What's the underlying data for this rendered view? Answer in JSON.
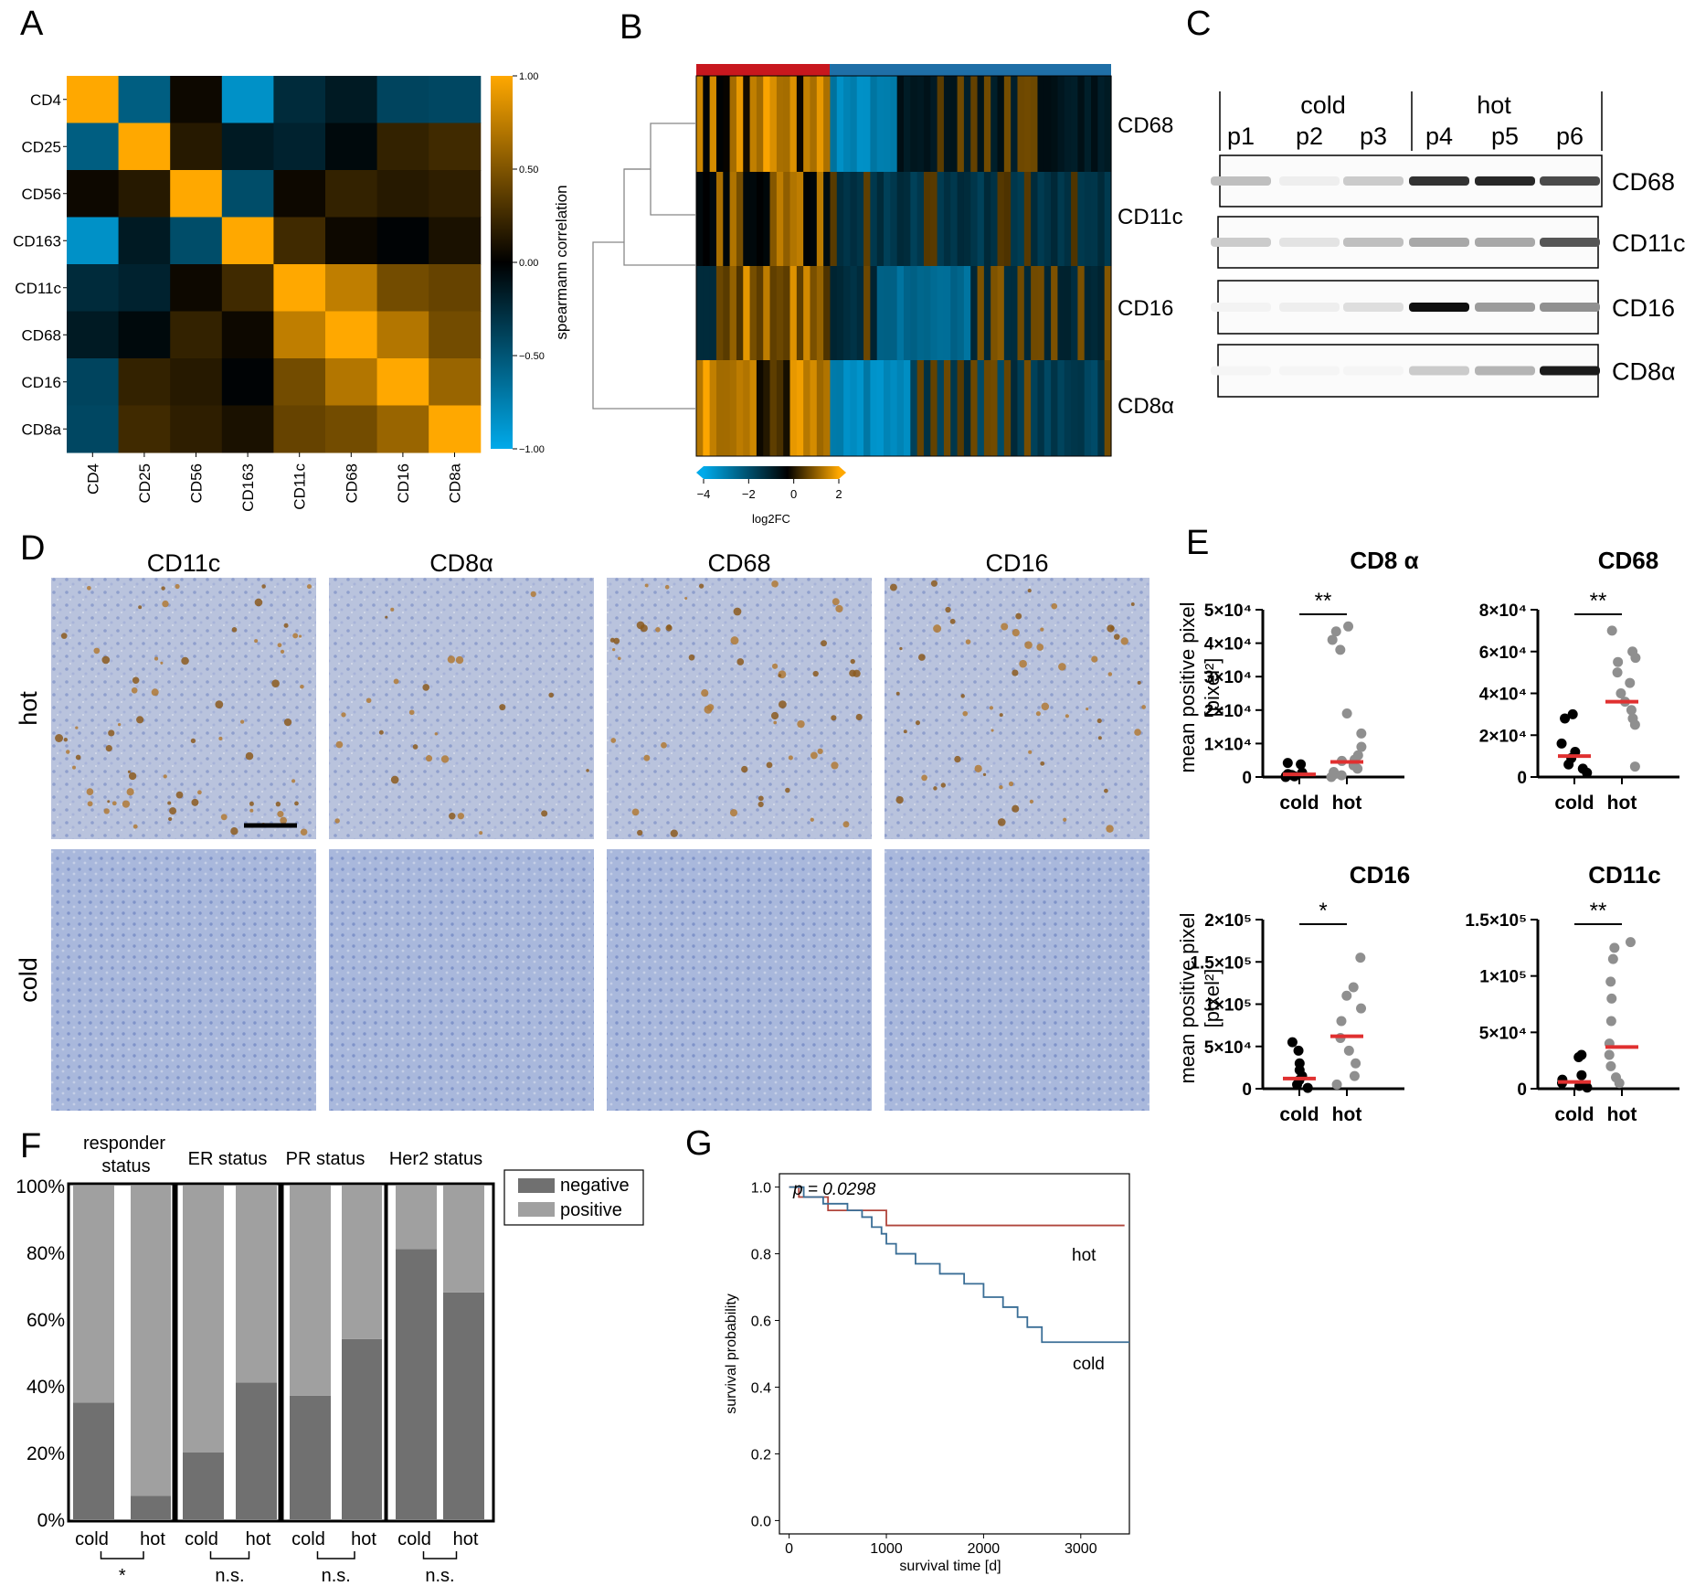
{
  "panel_letters": [
    "A",
    "B",
    "C",
    "D",
    "E",
    "F",
    "G"
  ],
  "colors": {
    "orange": "#ffa800",
    "blue": "#00aaea",
    "black": "#000000",
    "red": "#d02020",
    "hot_bar": "#c8171e",
    "cold_bar": "#1f6fa7",
    "dark_gray": "#707070",
    "light_gray": "#a0a0a0",
    "km_hot": "#b0453c",
    "km_cold": "#3a6e96",
    "median": "#e03030"
  },
  "panelA": {
    "title": "",
    "row_labels": [
      "CD4",
      "CD25",
      "CD56",
      "CD163",
      "CD11c",
      "CD68",
      "CD16",
      "CD8a"
    ],
    "col_labels": [
      "CD4",
      "CD25",
      "CD56",
      "CD163",
      "CD11c",
      "CD68",
      "CD16",
      "CD8a"
    ],
    "colorbar_ticks": [
      "1.00",
      "0.50",
      "0.00",
      "−0.50",
      "−1.00"
    ],
    "colorbar_label": "spearmann correlation",
    "chart_data": {
      "type": "heatmap",
      "x": [
        "CD4",
        "CD25",
        "CD56",
        "CD163",
        "CD11c",
        "CD68",
        "CD16",
        "CD8a"
      ],
      "y": [
        "CD4",
        "CD25",
        "CD56",
        "CD163",
        "CD11c",
        "CD68",
        "CD16",
        "CD8a"
      ],
      "zlim": [
        -1,
        1
      ],
      "values": [
        [
          1.0,
          -0.55,
          0.05,
          -0.85,
          -0.25,
          -0.15,
          -0.4,
          -0.42
        ],
        [
          -0.55,
          1.0,
          0.15,
          -0.15,
          -0.2,
          -0.05,
          0.2,
          0.25
        ],
        [
          0.05,
          0.15,
          1.0,
          -0.45,
          0.05,
          0.2,
          0.15,
          0.18
        ],
        [
          -0.85,
          -0.15,
          -0.45,
          1.0,
          0.25,
          0.05,
          -0.02,
          0.1
        ],
        [
          -0.25,
          -0.2,
          0.05,
          0.25,
          1.0,
          0.75,
          0.45,
          0.4
        ],
        [
          -0.15,
          -0.05,
          0.2,
          0.05,
          0.75,
          1.0,
          0.7,
          0.45
        ],
        [
          -0.4,
          0.2,
          0.15,
          -0.02,
          0.45,
          0.7,
          1.0,
          0.6
        ],
        [
          -0.42,
          0.25,
          0.18,
          0.1,
          0.4,
          0.45,
          0.6,
          1.0
        ]
      ]
    }
  },
  "panelB": {
    "row_labels": [
      "CD68",
      "CD11c",
      "CD16",
      "CD8α"
    ],
    "colorbar_ticks": [
      "−4",
      "−2",
      "0",
      "2"
    ],
    "colorbar_label": "log2FC",
    "chart_data": {
      "type": "heatmap",
      "rows": [
        "CD68",
        "CD11c",
        "CD16",
        "CD8α"
      ],
      "groups": [
        {
          "name": "hot",
          "n": 20
        },
        {
          "name": "cold",
          "n": 42
        }
      ],
      "zlim": [
        -4,
        2
      ]
    }
  },
  "panelC": {
    "group_labels": [
      "cold",
      "hot"
    ],
    "lane_labels": [
      "p1",
      "p2",
      "p3",
      "p4",
      "p5",
      "p6"
    ],
    "blot_labels": [
      "CD68",
      "CD11c",
      "CD16",
      "CD8α"
    ],
    "band_intensity": [
      [
        0.25,
        0.05,
        0.2,
        0.85,
        0.9,
        0.75
      ],
      [
        0.2,
        0.1,
        0.25,
        0.35,
        0.35,
        0.7
      ],
      [
        0.03,
        0.05,
        0.12,
        1.0,
        0.4,
        0.45
      ],
      [
        0.02,
        0.02,
        0.02,
        0.2,
        0.3,
        0.95
      ]
    ]
  },
  "panelD": {
    "col_labels": [
      "CD11c",
      "CD8α",
      "CD68",
      "CD16"
    ],
    "row_labels": [
      "hot",
      "cold"
    ]
  },
  "panelE": {
    "ylabel_line1": "mean positive pixel",
    "ylabel_line2": "[pixel²]",
    "chart_data": [
      {
        "type": "scatter",
        "title": "CD8 α",
        "categories": [
          "cold",
          "hot"
        ],
        "ylim": [
          0,
          50000
        ],
        "yticks": [
          "0",
          "1×10⁴",
          "2×10⁴",
          "3×10⁴",
          "4×10⁴",
          "5×10⁴"
        ],
        "ytick_values": [
          0,
          10000,
          20000,
          30000,
          40000,
          50000
        ],
        "significance": "**",
        "median": [
          800,
          4500
        ],
        "cold": [
          0,
          300,
          600,
          900,
          1300,
          3800,
          4200,
          200
        ],
        "hot": [
          0,
          800,
          1500,
          2500,
          3500,
          4800,
          5200,
          6500,
          9000,
          13000,
          19000,
          38000,
          41000,
          43500,
          45000,
          500
        ]
      },
      {
        "type": "scatter",
        "title": "CD68",
        "categories": [
          "cold",
          "hot"
        ],
        "ylim": [
          0,
          80000
        ],
        "yticks": [
          "0",
          "2×10⁴",
          "4×10⁴",
          "6×10⁴",
          "8×10⁴"
        ],
        "ytick_values": [
          0,
          20000,
          40000,
          60000,
          80000
        ],
        "significance": "**",
        "median": [
          10000,
          36000
        ],
        "cold": [
          2000,
          4000,
          6000,
          9000,
          12000,
          16000,
          28000,
          30000
        ],
        "hot": [
          5000,
          25000,
          28000,
          32000,
          36000,
          40000,
          45000,
          50000,
          55000,
          57000,
          60000,
          70000
        ]
      },
      {
        "type": "scatter",
        "title": "CD16",
        "categories": [
          "cold",
          "hot"
        ],
        "ylim": [
          0,
          200000
        ],
        "yticks": [
          "0",
          "5×10⁴",
          "1×10⁵",
          "1.5×10⁵",
          "2×10⁵"
        ],
        "ytick_values": [
          0,
          50000,
          100000,
          150000,
          200000
        ],
        "significance": "*",
        "median": [
          12000,
          62000
        ],
        "cold": [
          1000,
          5000,
          10000,
          15000,
          22000,
          30000,
          45000,
          55000
        ],
        "hot": [
          5000,
          15000,
          30000,
          45000,
          60000,
          80000,
          95000,
          110000,
          120000,
          155000
        ]
      },
      {
        "type": "scatter",
        "title": "CD11c",
        "categories": [
          "cold",
          "hot"
        ],
        "ylim": [
          0,
          150000
        ],
        "yticks": [
          "0",
          "5×10⁴",
          "1×10⁵",
          "1.5×10⁵"
        ],
        "ytick_values": [
          0,
          50000,
          100000,
          150000
        ],
        "significance": "**",
        "median": [
          6000,
          37000
        ],
        "cold": [
          1000,
          2500,
          5000,
          8000,
          12000,
          28000,
          30000
        ],
        "hot": [
          5000,
          10000,
          20000,
          30000,
          40000,
          60000,
          80000,
          95000,
          115000,
          125000,
          130000
        ]
      }
    ]
  },
  "panelF": {
    "group_titles": [
      "responder status",
      "ER status",
      "PR status",
      "Her2 status"
    ],
    "yticks": [
      "0%",
      "20%",
      "40%",
      "60%",
      "80%",
      "100%"
    ],
    "legend": [
      "negative",
      "positive"
    ],
    "significance": [
      "*",
      "n.s.",
      "n.s.",
      "n.s."
    ],
    "chart_data": {
      "type": "bar",
      "stacked": true,
      "categories": [
        "cold",
        "hot",
        "cold",
        "hot",
        "cold",
        "hot",
        "cold",
        "hot"
      ],
      "series": [
        {
          "name": "negative",
          "values": [
            35,
            7,
            20,
            41,
            37,
            54,
            81,
            68
          ]
        },
        {
          "name": "positive",
          "values": [
            65,
            93,
            80,
            59,
            63,
            46,
            19,
            32
          ]
        }
      ],
      "ylim": [
        0,
        100
      ]
    }
  },
  "panelG": {
    "pvalue": "p = 0.0298",
    "xlabel": "survival time [d]",
    "ylabel": "survival probability",
    "xticks": [
      "0",
      "1000",
      "2000",
      "3000"
    ],
    "yticks": [
      "0.0",
      "0.2",
      "0.4",
      "0.6",
      "0.8",
      "1.0"
    ],
    "chart_data": {
      "type": "line",
      "xlim": [
        -100,
        3500
      ],
      "ylim": [
        -0.04,
        1.04
      ],
      "series": [
        {
          "name": "hot",
          "x": [
            0,
            100,
            400,
            1000,
            3450
          ],
          "y": [
            1.0,
            0.97,
            0.93,
            0.885,
            0.885
          ]
        },
        {
          "name": "cold",
          "x": [
            0,
            150,
            350,
            600,
            750,
            850,
            950,
            1000,
            1100,
            1300,
            1550,
            1800,
            2000,
            2200,
            2350,
            2450,
            2600,
            3500
          ],
          "y": [
            1.0,
            0.97,
            0.95,
            0.93,
            0.91,
            0.88,
            0.86,
            0.83,
            0.8,
            0.77,
            0.74,
            0.71,
            0.67,
            0.64,
            0.61,
            0.58,
            0.535,
            0.535
          ]
        }
      ]
    }
  }
}
